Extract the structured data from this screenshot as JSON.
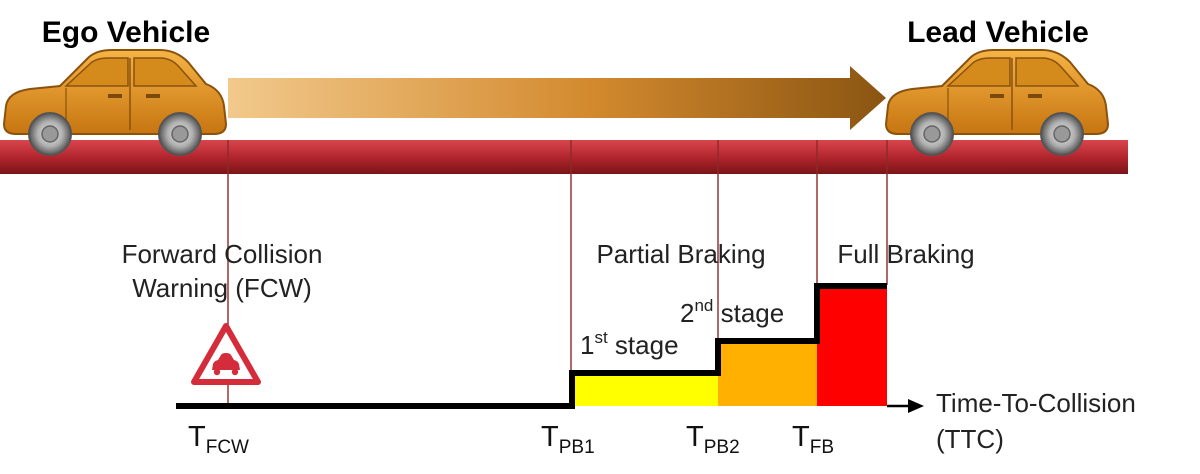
{
  "vehicles": {
    "ego_label": "Ego Vehicle",
    "lead_label": "Lead Vehicle"
  },
  "fcw": {
    "line1": "Forward Collision",
    "line2": "Warning (FCW)",
    "icon": "warning-triangle-car-icon"
  },
  "partial_braking": {
    "label": "Partial Braking",
    "stage1": {
      "base": "1",
      "sup": "st",
      "rest": " stage"
    },
    "stage2": {
      "base": "2",
      "sup": "nd",
      "rest": " stage"
    }
  },
  "full_braking": {
    "label": "Full Braking"
  },
  "axis": {
    "line1": "Time-To-Collision",
    "line2": "(TTC)"
  },
  "ticks": {
    "t_fcw": {
      "base": "T",
      "sub": "FCW"
    },
    "t_pb1": {
      "base": "T",
      "sub": "PB1"
    },
    "t_pb2": {
      "base": "T",
      "sub": "PB2"
    },
    "t_fb": {
      "base": "T",
      "sub": "FB"
    }
  },
  "colors": {
    "car_body": "#e8961a",
    "road": "#b3262e",
    "stage1": "#ffff00",
    "stage2": "#ffb000",
    "full": "#ff0000",
    "warning_red": "#d42c3a"
  }
}
